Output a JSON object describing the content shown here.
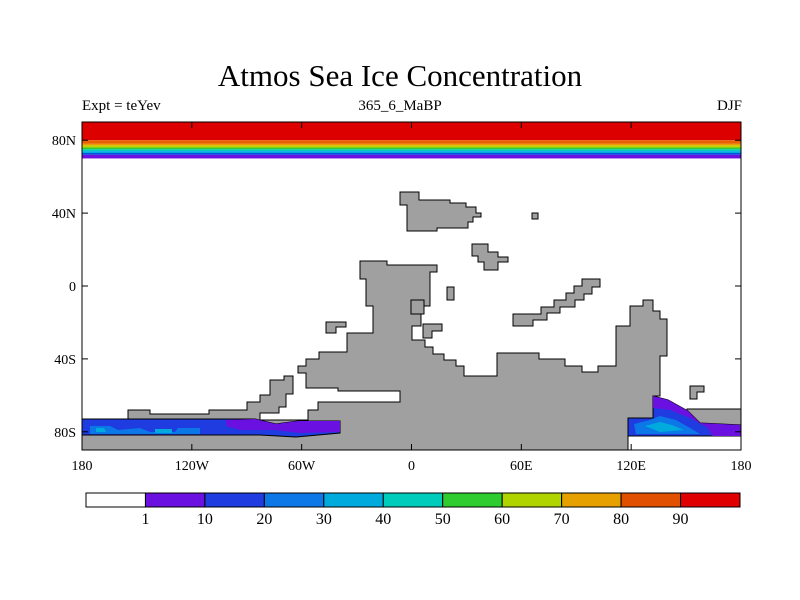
{
  "title": "Atmos Sea Ice Concentration",
  "subtitle_left": "Expt = teYev",
  "subtitle_center": "365_6_MaBP",
  "subtitle_right": "DJF",
  "map": {
    "lon_range": [
      -180,
      180
    ],
    "lat_range": [
      -90,
      90
    ],
    "lon_ticks": [
      {
        "value": -180,
        "label": "180"
      },
      {
        "value": -120,
        "label": "120W"
      },
      {
        "value": -60,
        "label": "60W"
      },
      {
        "value": 0,
        "label": "0"
      },
      {
        "value": 60,
        "label": "60E"
      },
      {
        "value": 120,
        "label": "120E"
      },
      {
        "value": 180,
        "label": "180"
      }
    ],
    "lat_ticks": [
      {
        "value": 80,
        "label": "80N"
      },
      {
        "value": 40,
        "label": "40N"
      },
      {
        "value": 0,
        "label": "0"
      },
      {
        "value": -40,
        "label": "40S"
      },
      {
        "value": -80,
        "label": "80S"
      }
    ],
    "land_color": "#a0a0a0",
    "ocean_color": "#ffffff",
    "north_ice_bands": [
      {
        "lat_top": 90,
        "lat_bottom": 80,
        "color": "#dd0000"
      },
      {
        "lat_top": 80,
        "lat_bottom": 78,
        "color": "#e96000"
      },
      {
        "lat_top": 78,
        "lat_bottom": 77,
        "color": "#e6a000"
      },
      {
        "lat_top": 77,
        "lat_bottom": 76,
        "color": "#c0d400"
      },
      {
        "lat_top": 76,
        "lat_bottom": 75,
        "color": "#33cc33"
      },
      {
        "lat_top": 75,
        "lat_bottom": 74,
        "color": "#00ccbb"
      },
      {
        "lat_top": 74,
        "lat_bottom": 73,
        "color": "#00a8e0"
      },
      {
        "lat_top": 73,
        "lat_bottom": 72,
        "color": "#0050e0"
      },
      {
        "lat_top": 72,
        "lat_bottom": 70,
        "color": "#6a10e0"
      }
    ]
  },
  "colorbar": {
    "colors": [
      "#ffffff",
      "#6a10e0",
      "#1e3ce0",
      "#0c78e8",
      "#00aadc",
      "#00ccbb",
      "#2ecc2e",
      "#b0d400",
      "#e6a000",
      "#e05000",
      "#e00000"
    ],
    "labels": [
      "1",
      "10",
      "20",
      "30",
      "40",
      "50",
      "60",
      "70",
      "80",
      "90"
    ]
  }
}
